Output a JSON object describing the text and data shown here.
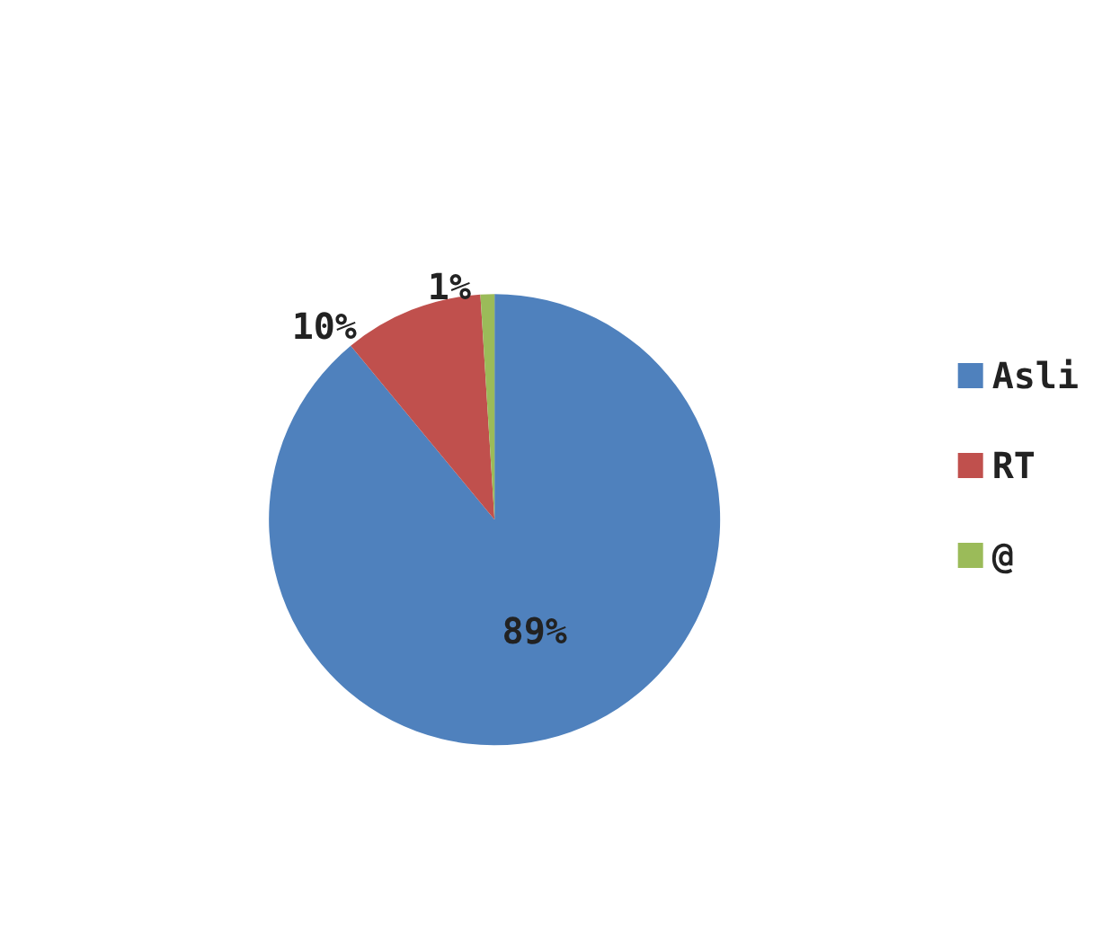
{
  "chart_data": {
    "type": "pie",
    "categories": [
      "Asli",
      "RT",
      "@"
    ],
    "values": [
      89,
      10,
      1
    ],
    "colors": [
      "#4f81bd",
      "#c0504d",
      "#9bbb59"
    ],
    "value_labels": [
      "89%",
      "10%",
      "1%"
    ],
    "legend": "right"
  }
}
